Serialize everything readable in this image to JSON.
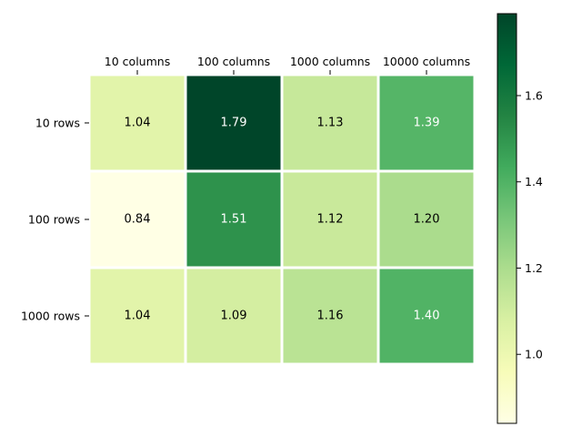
{
  "chart_data": {
    "type": "heatmap",
    "title": "",
    "xlabel": "",
    "ylabel": "",
    "columns": [
      "10 columns",
      "100 columns",
      "1000 columns",
      "10000 columns"
    ],
    "rows": [
      "10 rows",
      "100 rows",
      "1000 rows"
    ],
    "values": [
      [
        1.04,
        1.79,
        1.13,
        1.39
      ],
      [
        0.84,
        1.51,
        1.12,
        1.2
      ],
      [
        1.04,
        1.09,
        1.16,
        1.4
      ]
    ],
    "cell_labels": [
      [
        "1.04",
        "1.79",
        "1.13",
        "1.39"
      ],
      [
        "0.84",
        "1.51",
        "1.12",
        "1.20"
      ],
      [
        "1.04",
        "1.09",
        "1.16",
        "1.40"
      ]
    ],
    "colormap": "YlGn",
    "vmin": 0.84,
    "vmax": 1.79,
    "colorbar": {
      "ticks": [
        1.0,
        1.2,
        1.4,
        1.6
      ],
      "tick_labels": [
        "1.0",
        "1.2",
        "1.4",
        "1.6"
      ]
    },
    "grid_color": "#ffffff",
    "colormap_stops": [
      "#ffffe5",
      "#f7fcb9",
      "#d9f0a3",
      "#addd8e",
      "#78c679",
      "#41ab5d",
      "#238443",
      "#006837",
      "#004529"
    ]
  }
}
